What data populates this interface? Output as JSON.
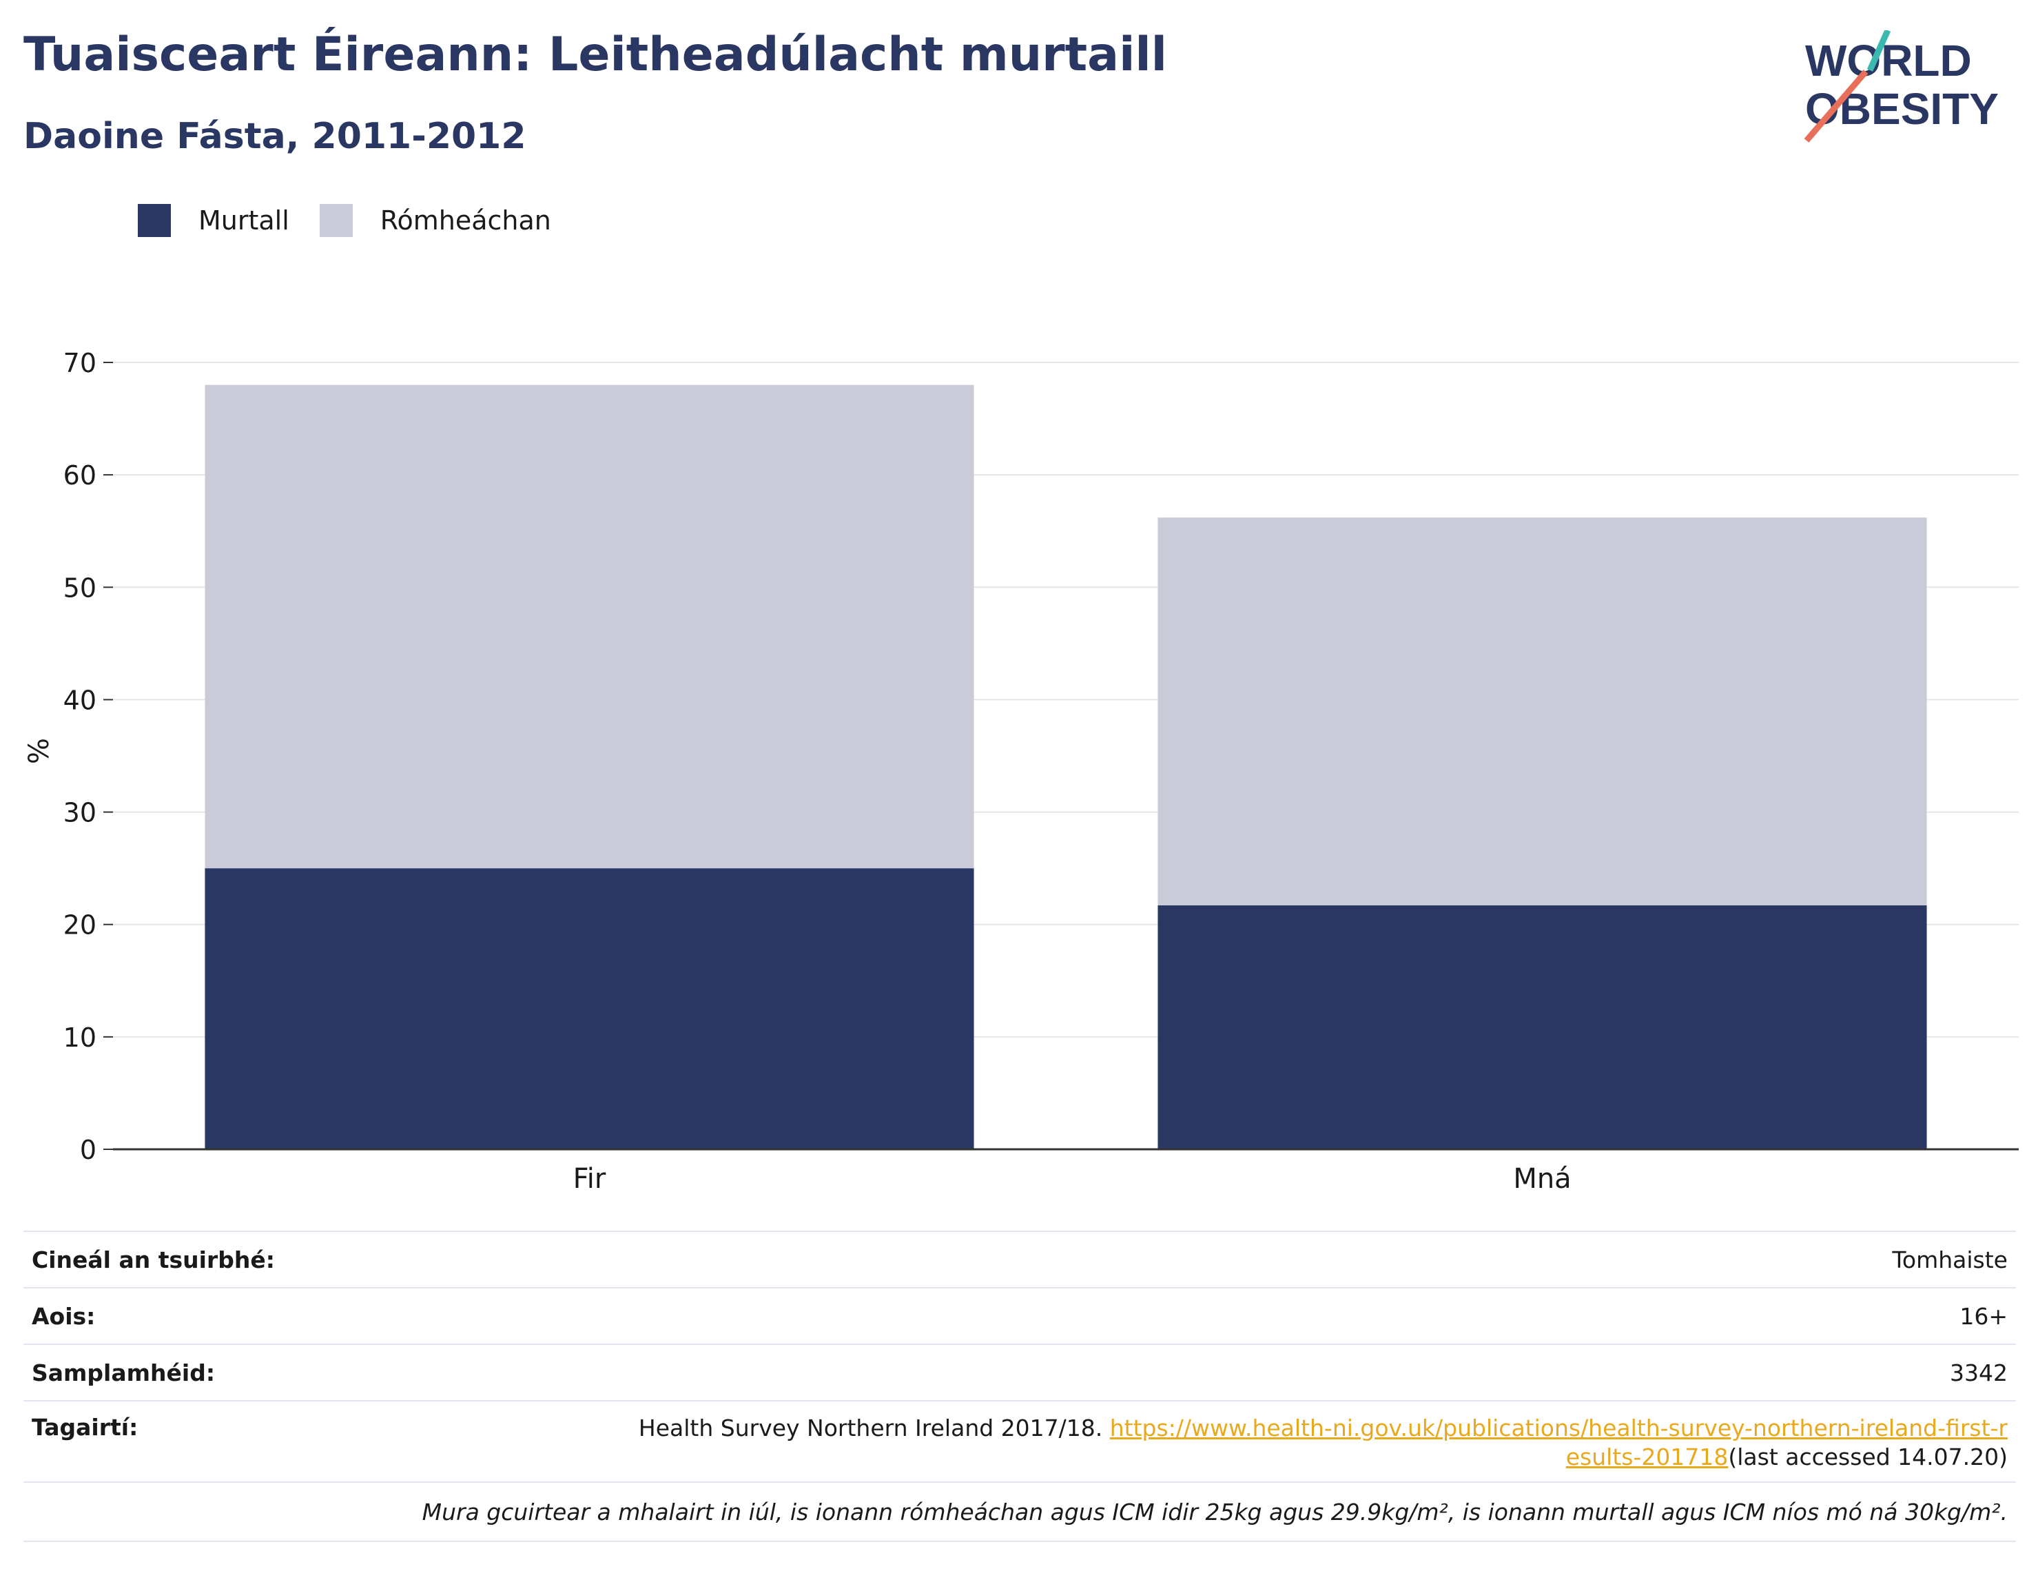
{
  "title": "Tuaisceart Éireann: Leitheadúlacht murtaill",
  "subtitle": "Daoine Fásta, 2011-2012",
  "logo": {
    "line1": "WORLD",
    "line2": "OBESITY",
    "accent_teal": "#3bb8b0",
    "accent_coral": "#e8705a"
  },
  "colors": {
    "obese": "#2a3763",
    "overweight": "#c9ccd8",
    "brand": "#2a3763",
    "link": "#e8a91e"
  },
  "chart_data": {
    "type": "bar",
    "stacked": true,
    "categories": [
      "Fir",
      "Mná"
    ],
    "series": [
      {
        "name": "Murtall",
        "values": [
          25,
          21.7
        ]
      },
      {
        "name": "Rómheáchan",
        "values": [
          43,
          34.5
        ]
      }
    ],
    "ylabel": "%",
    "ylim": [
      0,
      70
    ],
    "yticks": [
      0,
      10,
      20,
      30,
      40,
      50,
      60,
      70
    ],
    "grid": true,
    "legend": "top-left"
  },
  "info": {
    "survey_type_label": "Cineál an tsuirbhé:",
    "survey_type_value": "Tomhaiste",
    "age_label": "Aois:",
    "age_value": "16+",
    "sample_label": "Samplamhéid:",
    "sample_value": "3342",
    "ref_label": "Tagairtí:",
    "ref_text": "Health Survey Northern Ireland 2017/18. ",
    "ref_link": "https://www.health-ni.gov.uk/publications/health-survey-northern-ireland-first-results-201718",
    "ref_suffix": "(last accessed 14.07.20)",
    "note": "Mura gcuirtear a mhalairt in iúl, is ionann rómheáchan agus ICM idir 25kg agus 29.9kg/m², is ionann murtall agus ICM níos mó ná 30kg/m²."
  }
}
